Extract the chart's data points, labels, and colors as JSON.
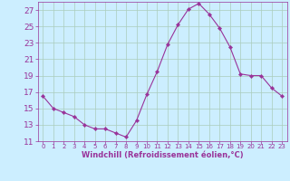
{
  "x": [
    0,
    1,
    2,
    3,
    4,
    5,
    6,
    7,
    8,
    9,
    10,
    11,
    12,
    13,
    14,
    15,
    16,
    17,
    18,
    19,
    20,
    21,
    22,
    23
  ],
  "y": [
    16.5,
    15.0,
    14.5,
    14.0,
    13.0,
    12.5,
    12.5,
    12.0,
    11.5,
    13.5,
    16.7,
    19.5,
    22.8,
    25.2,
    27.1,
    27.8,
    26.5,
    24.8,
    22.5,
    19.2,
    19.0,
    19.0,
    17.5,
    16.5
  ],
  "line_color": "#993399",
  "marker": "D",
  "markersize": 2.2,
  "linewidth": 0.8,
  "bg_color": "#cceeff",
  "grid_color": "#aaccbb",
  "xlabel": "Windchill (Refroidissement éolien,°C)",
  "xlabel_color": "#993399",
  "tick_color": "#993399",
  "ylim": [
    11,
    28
  ],
  "xlim": [
    -0.5,
    23.5
  ],
  "yticks": [
    11,
    13,
    15,
    17,
    19,
    21,
    23,
    25,
    27
  ],
  "xticks": [
    0,
    1,
    2,
    3,
    4,
    5,
    6,
    7,
    8,
    9,
    10,
    11,
    12,
    13,
    14,
    15,
    16,
    17,
    18,
    19,
    20,
    21,
    22,
    23
  ],
  "ytick_fontsize": 6.5,
  "xtick_fontsize": 5.0,
  "xlabel_fontsize": 6.0
}
